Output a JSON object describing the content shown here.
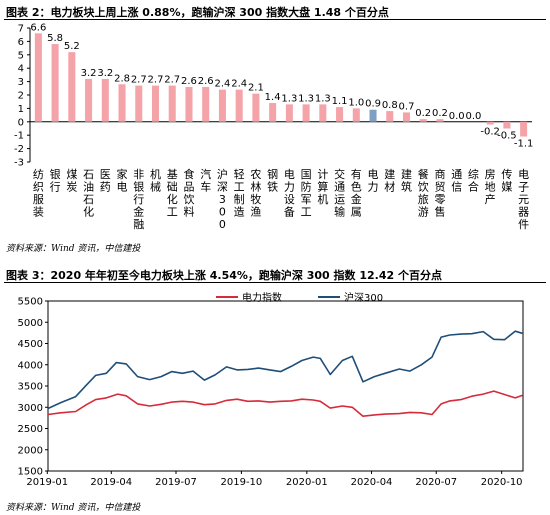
{
  "figure2": {
    "title": "图表 2：电力板块上周上涨 0.88%，跑输沪深 300 指数大盘 1.48 个百分点",
    "source": "资料来源：Wind 资讯，中信建投"
  },
  "figure3": {
    "title": "图表 3：2020 年年初至今电力板块上涨 4.54%，跑输沪深 300 指数 12.42 个百分点",
    "source": "资料来源：Wind 资讯，中信建投"
  },
  "colors": {
    "bar": "#f4a3a8",
    "highlight": "#7f9fc4",
    "line_power": "#d62b3a",
    "line_hs300": "#1f4e79"
  },
  "chart_data": [
    {
      "type": "bar",
      "categories": [
        "纺织服装",
        "银行",
        "煤炭",
        "石油石化",
        "医药",
        "家电",
        "非银行金融",
        "机械",
        "基础化工",
        "食品饮料",
        "汽车",
        "沪深300",
        "轻工制造",
        "农林牧渔",
        "钢铁",
        "电力设备",
        "国防军工",
        "计算机",
        "交通运输",
        "有色金属",
        "电力",
        "建材",
        "建筑",
        "餐饮旅游",
        "商贸零售",
        "通信",
        "综合",
        "房地产",
        "传媒",
        "电子元器件"
      ],
      "values": [
        6.6,
        5.8,
        5.2,
        3.2,
        3.2,
        2.8,
        2.7,
        2.7,
        2.7,
        2.6,
        2.6,
        2.4,
        2.4,
        2.1,
        1.4,
        1.3,
        1.3,
        1.3,
        1.1,
        1.0,
        0.9,
        0.8,
        0.7,
        0.2,
        0.2,
        0.0,
        0.0,
        -0.2,
        -0.5,
        -1.1
      ],
      "value_labels": [
        "6.6",
        "5.8",
        "5.2",
        "3.2",
        "3.2",
        "2.8",
        "2.7",
        "2.7",
        "2.7",
        "2.6",
        "2.6",
        "2.4",
        "2.4",
        "2.1",
        "1.4",
        "1.3",
        "1.3",
        "1.3",
        "1.1",
        "1.0",
        "0.9",
        "0.8",
        "0.7",
        "0.2",
        "0.2",
        "0.0",
        "0.0",
        "-0.2",
        "-0.5",
        "-1.1"
      ],
      "highlight": "电力",
      "ylim": [
        -3,
        7
      ],
      "yticks": [
        -3,
        -2,
        -1,
        0,
        1,
        2,
        3,
        4,
        5,
        6,
        7
      ]
    },
    {
      "type": "line",
      "x_ticks": [
        "2019-01",
        "2019-04",
        "2019-07",
        "2019-10",
        "2020-01",
        "2020-04",
        "2020-07",
        "2020-10"
      ],
      "xlim": [
        "2019-01-02",
        "2020-10-31"
      ],
      "ylim": [
        1500,
        5500
      ],
      "yticks": [
        1500,
        2000,
        2500,
        3000,
        3500,
        4000,
        4500,
        5000,
        5500
      ],
      "legend_position": "top-center",
      "series": [
        {
          "name": "电力指数",
          "points": [
            [
              "2019-01-02",
              2830
            ],
            [
              "2019-01-20",
              2870
            ],
            [
              "2019-02-10",
              2900
            ],
            [
              "2019-02-25",
              3060
            ],
            [
              "2019-03-10",
              3180
            ],
            [
              "2019-03-25",
              3220
            ],
            [
              "2019-04-10",
              3310
            ],
            [
              "2019-04-22",
              3270
            ],
            [
              "2019-05-08",
              3080
            ],
            [
              "2019-05-25",
              3030
            ],
            [
              "2019-06-10",
              3070
            ],
            [
              "2019-06-25",
              3120
            ],
            [
              "2019-07-10",
              3140
            ],
            [
              "2019-07-25",
              3120
            ],
            [
              "2019-08-10",
              3060
            ],
            [
              "2019-08-25",
              3080
            ],
            [
              "2019-09-10",
              3160
            ],
            [
              "2019-09-25",
              3190
            ],
            [
              "2019-10-10",
              3140
            ],
            [
              "2019-10-25",
              3150
            ],
            [
              "2019-11-10",
              3120
            ],
            [
              "2019-11-25",
              3140
            ],
            [
              "2019-12-10",
              3150
            ],
            [
              "2019-12-25",
              3190
            ],
            [
              "2020-01-10",
              3170
            ],
            [
              "2020-01-20",
              3140
            ],
            [
              "2020-02-03",
              2980
            ],
            [
              "2020-02-20",
              3030
            ],
            [
              "2020-03-05",
              3000
            ],
            [
              "2020-03-20",
              2790
            ],
            [
              "2020-04-05",
              2820
            ],
            [
              "2020-04-20",
              2840
            ],
            [
              "2020-05-10",
              2850
            ],
            [
              "2020-05-25",
              2880
            ],
            [
              "2020-06-10",
              2870
            ],
            [
              "2020-06-25",
              2830
            ],
            [
              "2020-07-08",
              3080
            ],
            [
              "2020-07-20",
              3150
            ],
            [
              "2020-08-05",
              3180
            ],
            [
              "2020-08-20",
              3260
            ],
            [
              "2020-09-05",
              3310
            ],
            [
              "2020-09-20",
              3380
            ],
            [
              "2020-10-05",
              3300
            ],
            [
              "2020-10-20",
              3220
            ],
            [
              "2020-10-30",
              3280
            ]
          ]
        },
        {
          "name": "沪深300",
          "points": [
            [
              "2019-01-02",
              2970
            ],
            [
              "2019-01-20",
              3110
            ],
            [
              "2019-02-10",
              3250
            ],
            [
              "2019-02-25",
              3520
            ],
            [
              "2019-03-10",
              3750
            ],
            [
              "2019-03-25",
              3800
            ],
            [
              "2019-04-08",
              4050
            ],
            [
              "2019-04-22",
              4020
            ],
            [
              "2019-05-08",
              3720
            ],
            [
              "2019-05-25",
              3650
            ],
            [
              "2019-06-10",
              3720
            ],
            [
              "2019-06-25",
              3840
            ],
            [
              "2019-07-10",
              3800
            ],
            [
              "2019-07-25",
              3850
            ],
            [
              "2019-08-10",
              3640
            ],
            [
              "2019-08-25",
              3760
            ],
            [
              "2019-09-10",
              3950
            ],
            [
              "2019-09-25",
              3880
            ],
            [
              "2019-10-10",
              3890
            ],
            [
              "2019-10-25",
              3920
            ],
            [
              "2019-11-10",
              3880
            ],
            [
              "2019-11-25",
              3840
            ],
            [
              "2019-12-10",
              3960
            ],
            [
              "2019-12-25",
              4100
            ],
            [
              "2020-01-10",
              4180
            ],
            [
              "2020-01-20",
              4150
            ],
            [
              "2020-02-03",
              3770
            ],
            [
              "2020-02-20",
              4100
            ],
            [
              "2020-03-05",
              4200
            ],
            [
              "2020-03-20",
              3600
            ],
            [
              "2020-04-05",
              3720
            ],
            [
              "2020-04-20",
              3800
            ],
            [
              "2020-05-10",
              3900
            ],
            [
              "2020-05-25",
              3850
            ],
            [
              "2020-06-10",
              4000
            ],
            [
              "2020-06-25",
              4180
            ],
            [
              "2020-07-08",
              4650
            ],
            [
              "2020-07-20",
              4700
            ],
            [
              "2020-08-05",
              4720
            ],
            [
              "2020-08-20",
              4730
            ],
            [
              "2020-09-05",
              4780
            ],
            [
              "2020-09-20",
              4600
            ],
            [
              "2020-10-05",
              4590
            ],
            [
              "2020-10-20",
              4790
            ],
            [
              "2020-10-30",
              4740
            ]
          ]
        }
      ]
    }
  ]
}
